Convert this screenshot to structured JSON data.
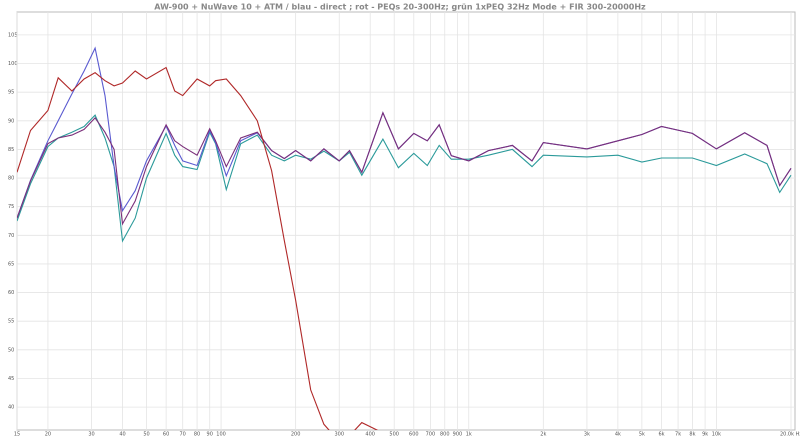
{
  "chart_data": {
    "type": "line",
    "title": "AW-900 + NuWave 10 + ATM / blau - direct ; rot - PEQs 20-300Hz; grün 1xPEQ 32Hz Mode + FIR 300-20000Hz",
    "log_x": true,
    "grid": true,
    "xlim": [
      15,
      20000
    ],
    "ylim": [
      36,
      109
    ],
    "xticks": [
      15,
      20,
      30,
      40,
      50,
      60,
      70,
      80,
      90,
      100,
      200,
      300,
      400,
      500,
      600,
      700,
      800,
      900,
      {
        "value": 1000,
        "label": "1k"
      },
      {
        "value": 2000,
        "label": "2k"
      },
      {
        "value": 3000,
        "label": "3k"
      },
      {
        "value": 4000,
        "label": "4k"
      },
      {
        "value": 5000,
        "label": "5k"
      },
      {
        "value": 6000,
        "label": "6k"
      },
      {
        "value": 7000,
        "label": "7k"
      },
      {
        "value": 8000,
        "label": "8k"
      },
      {
        "value": 9000,
        "label": "9k"
      },
      {
        "value": 10000,
        "label": "10k"
      },
      {
        "value": 20000,
        "label": "20.0k Hz"
      }
    ],
    "yticks": [
      40,
      45,
      50,
      55,
      60,
      65,
      70,
      75,
      80,
      85,
      90,
      95,
      100,
      105
    ],
    "x": [
      15,
      17,
      20,
      22,
      25,
      28,
      31,
      34,
      37,
      40,
      45,
      50,
      60,
      65,
      70,
      80,
      90,
      95,
      105,
      120,
      140,
      160,
      180,
      200,
      230,
      260,
      300,
      330,
      370,
      450,
      520,
      600,
      680,
      760,
      850,
      1000,
      1200,
      1500,
      1800,
      2000,
      3000,
      4000,
      5000,
      6000,
      8000,
      10000,
      13000,
      16000,
      18000,
      20000
    ],
    "series": [
      {
        "color": "#2b9a9a",
        "values": [
          72.5,
          79,
          85.5,
          87,
          88,
          89,
          91,
          87,
          82,
          69,
          73,
          80,
          87.8,
          84,
          82,
          81.5,
          88,
          86,
          78,
          86,
          87.5,
          84,
          83,
          84,
          83.3,
          84.7,
          83,
          84.5,
          80.5,
          86.8,
          81.8,
          84.3,
          82.2,
          85.7,
          83.3,
          83.3,
          84,
          85,
          82,
          84,
          83.7,
          84,
          82.8,
          83.5,
          83.5,
          82.2,
          84.2,
          82.5,
          77.5,
          80.5
        ]
      },
      {
        "color": "#5a5ad0",
        "values": [
          73,
          79.6,
          86.5,
          90,
          94.7,
          98.7,
          102.7,
          94.4,
          82,
          74.3,
          77.8,
          83,
          89.1,
          85.7,
          83,
          82.2,
          88.3,
          86.2,
          80.4,
          86.5,
          87.9,
          84.8,
          83.4,
          84.8,
          83,
          85.1,
          83,
          84.8,
          81,
          91.4,
          85.1,
          87.8,
          86.5,
          89.3,
          83.9,
          83,
          84.8,
          85.7,
          83,
          86.2,
          85.1,
          86.5,
          87.6,
          89,
          87.8,
          85.1,
          87.9,
          85.7,
          78.7,
          81.7
        ]
      },
      {
        "color": "#7a2f7a",
        "values": [
          73,
          79.5,
          86,
          87,
          87.5,
          88.5,
          90.5,
          88,
          85,
          72,
          76,
          82,
          89.3,
          86.5,
          85.5,
          84,
          88.6,
          86.5,
          82,
          87,
          88,
          84.8,
          83.4,
          84.8,
          83,
          85.1,
          83,
          84.8,
          81,
          91.4,
          85.1,
          87.8,
          86.5,
          89.3,
          83.9,
          83,
          84.8,
          85.7,
          83,
          86.2,
          85.1,
          86.5,
          87.6,
          89,
          87.8,
          85.1,
          87.9,
          85.7,
          78.7,
          81.7
        ]
      },
      {
        "color": "#b02828",
        "values": [
          81,
          88.3,
          91.8,
          97.5,
          95.2,
          97.3,
          98.4,
          97,
          96.1,
          96.6,
          98.7,
          97.3,
          99.3,
          95.2,
          94.4,
          97.3,
          96.1,
          97,
          97.3,
          94.4,
          90,
          81.3,
          69.1,
          58.7,
          43,
          37,
          34,
          35,
          37.3,
          35.5,
          null,
          null,
          null,
          null,
          null,
          null,
          null,
          null,
          null,
          null,
          null,
          null,
          null,
          null,
          null,
          null,
          null,
          null,
          null,
          null
        ]
      }
    ]
  }
}
